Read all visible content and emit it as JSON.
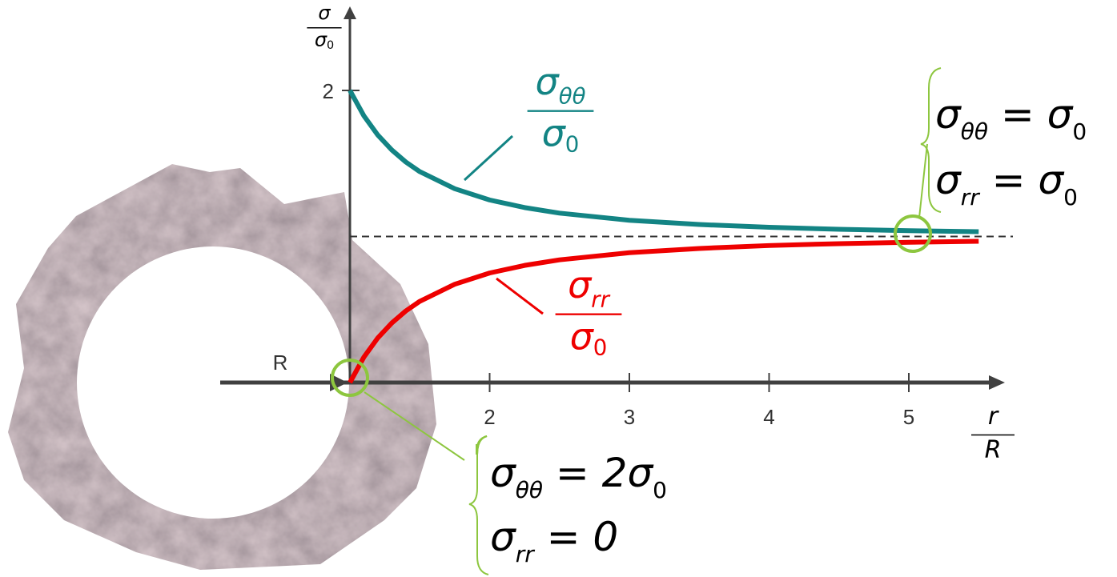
{
  "chart_data": {
    "type": "line",
    "x": [
      1,
      1.1,
      1.2,
      1.3,
      1.4,
      1.5,
      1.75,
      2,
      2.25,
      2.5,
      3,
      3.5,
      4,
      4.5,
      5,
      5.5
    ],
    "series": [
      {
        "color": "#138484",
        "values": [
          2,
          1.826,
          1.694,
          1.592,
          1.51,
          1.444,
          1.327,
          1.25,
          1.198,
          1.16,
          1.111,
          1.082,
          1.063,
          1.049,
          1.04,
          1.033
        ],
        "label": {
          "num": "σ",
          "num_sub": "θθ",
          "den": "σ",
          "den_sub": "0"
        }
      },
      {
        "color": "#ee0000",
        "values": [
          0,
          0.174,
          0.306,
          0.408,
          0.49,
          0.556,
          0.673,
          0.75,
          0.802,
          0.84,
          0.889,
          0.918,
          0.938,
          0.951,
          0.96,
          0.967
        ],
        "label": {
          "num": "σ",
          "num_sub": "rr",
          "den": "σ",
          "den_sub": "0"
        }
      }
    ],
    "xlim": [
      1,
      5.7
    ],
    "ylim": [
      0,
      2.6
    ],
    "xticks": [
      2,
      3,
      4,
      5
    ],
    "yticks": [
      2
    ],
    "reference_line": 1,
    "x_label": {
      "num": "r",
      "den": "R"
    },
    "y_label": {
      "num": "σ",
      "den": "σ",
      "den_sub": "0"
    },
    "radius_label": "R",
    "annotations": {
      "far": [
        [
          {
            "text": "σ"
          },
          {
            "text": "θθ",
            "sub": true
          },
          {
            "text": " = σ"
          },
          {
            "text": "0",
            "sub": true
          }
        ],
        [
          {
            "text": "σ"
          },
          {
            "text": "rr",
            "sub": true
          },
          {
            "text": " = σ"
          },
          {
            "text": "0",
            "sub": true
          }
        ]
      ],
      "wall": [
        [
          {
            "text": "σ"
          },
          {
            "text": "θθ",
            "sub": true
          },
          {
            "text": " = 2σ"
          },
          {
            "text": "0",
            "sub": true
          }
        ],
        [
          {
            "text": "σ"
          },
          {
            "text": "rr",
            "sub": true
          },
          {
            "text": " = 0"
          }
        ]
      ]
    }
  }
}
